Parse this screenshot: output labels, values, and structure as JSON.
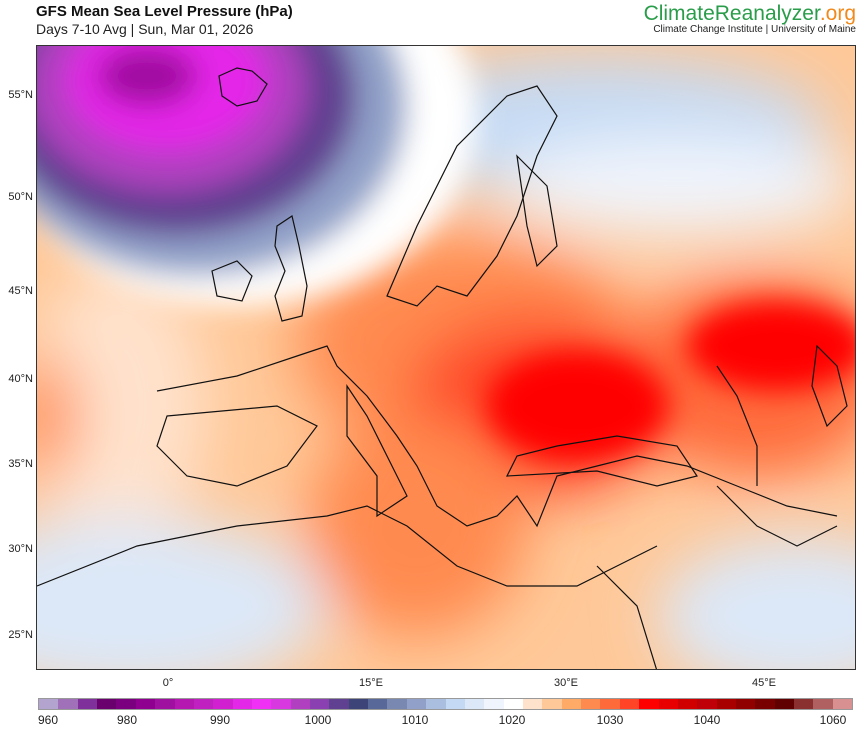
{
  "header": {
    "title": "GFS Mean Sea Level Pressure (hPa)",
    "subtitle": "Days 7-10 Avg | Sun, Mar 01, 2026"
  },
  "brand": {
    "name_main": "ClimateReanalyzer",
    "name_tld": ".org",
    "tagline": "Climate Change Institute | University of Maine"
  },
  "axes": {
    "lat_labels": [
      "55°N",
      "50°N",
      "45°N",
      "40°N",
      "35°N",
      "30°N",
      "25°N"
    ],
    "lon_labels": [
      "0°",
      "15°E",
      "30°E",
      "45°E"
    ]
  },
  "colorbar": {
    "labels": [
      "960",
      "980",
      "990",
      "1000",
      "1010",
      "1020",
      "1030",
      "1040",
      "1060"
    ],
    "colors": [
      "#b3a3cf",
      "#a070b8",
      "#80309a",
      "#6a006e",
      "#7a0080",
      "#900090",
      "#a010a0",
      "#b418b0",
      "#c020c0",
      "#d020d0",
      "#e428e8",
      "#f030f5",
      "#d838e0",
      "#b040c0",
      "#8a40b0",
      "#604090",
      "#3c4478",
      "#586898",
      "#7888b0",
      "#90a0c8",
      "#aabee0",
      "#c4daf4",
      "#dce8f8",
      "#f0f4fc",
      "#ffffff",
      "#ffe2cc",
      "#ffc898",
      "#ffaa66",
      "#ff8a50",
      "#ff6a3a",
      "#ff4428",
      "#ff0000",
      "#e80000",
      "#d00000",
      "#c00008",
      "#a80000",
      "#900000",
      "#780000",
      "#600000",
      "#8a3030",
      "#b06060",
      "#d89090"
    ]
  }
}
